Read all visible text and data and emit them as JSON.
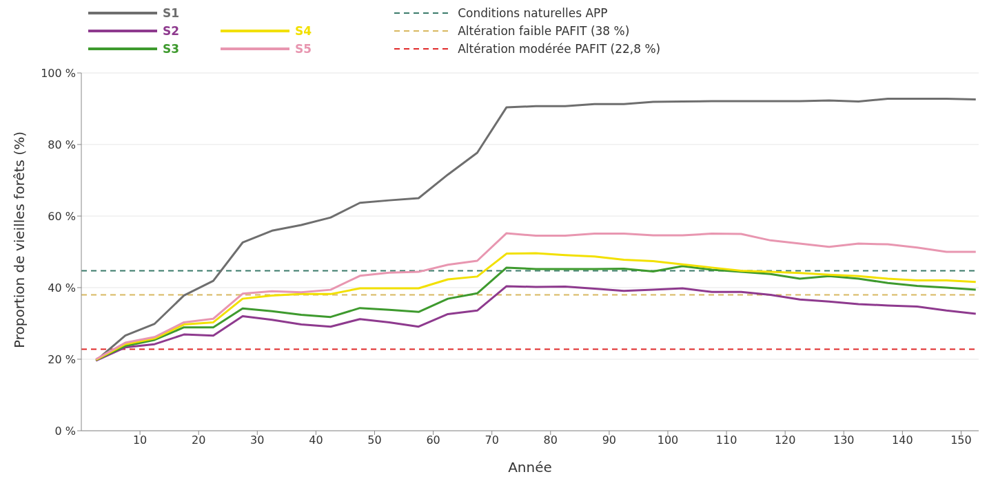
{
  "chart_data": {
    "type": "line",
    "xlabel": "Année",
    "ylabel": "Proportion de vieilles forêts (%)",
    "x": [
      2.5,
      7.5,
      12.5,
      17.5,
      22.5,
      27.5,
      32.5,
      37.5,
      42.5,
      47.5,
      52.5,
      57.5,
      62.5,
      67.5,
      72.5,
      77.5,
      82.5,
      87.5,
      92.5,
      97.5,
      102.5,
      107.5,
      112.5,
      117.5,
      122.5,
      127.5,
      132.5,
      137.5,
      142.5,
      147.5,
      152.5
    ],
    "series": [
      {
        "name": "S1",
        "color": "#6e6e6e",
        "values": [
          19.6,
          26.6,
          29.9,
          37.8,
          41.9,
          52.6,
          55.9,
          57.5,
          59.6,
          63.7,
          64.4,
          65,
          71.6,
          77.7,
          90.4,
          90.7,
          90.7,
          91.3,
          91.3,
          91.9,
          92,
          92.1,
          92.1,
          92.1,
          92.1,
          92.3,
          92,
          92.8,
          92.8,
          92.8,
          92.6
        ]
      },
      {
        "name": "S2",
        "color": "#8e3a8e",
        "values": [
          19.6,
          23.3,
          24.2,
          26.9,
          26.6,
          32,
          31,
          29.7,
          29.1,
          31.2,
          30.3,
          29.1,
          32.6,
          33.6,
          40.4,
          40.2,
          40.3,
          39.7,
          39.1,
          39.4,
          39.8,
          38.8,
          38.8,
          38,
          36.7,
          36.1,
          35.4,
          35,
          34.7,
          33.6,
          32.7
        ]
      },
      {
        "name": "S3",
        "color": "#3e9a2e",
        "values": [
          19.8,
          23.7,
          25.4,
          28.9,
          28.9,
          34.2,
          33.4,
          32.4,
          31.8,
          34.3,
          33.8,
          33.2,
          36.9,
          38.4,
          45.6,
          45.2,
          45.2,
          45.2,
          45.3,
          44.5,
          46,
          45,
          44.4,
          43.8,
          42.5,
          43.2,
          42.5,
          41.3,
          40.5,
          40,
          39.4
        ]
      },
      {
        "name": "S4",
        "color": "#f2e000",
        "values": [
          19.8,
          24.2,
          25.8,
          29.7,
          30.3,
          36.9,
          37.8,
          38.2,
          38.2,
          39.8,
          39.8,
          39.8,
          42.3,
          43.1,
          49.5,
          49.6,
          49.1,
          48.7,
          47.8,
          47.4,
          46.5,
          45.6,
          44.7,
          44.4,
          44.1,
          43.6,
          43.2,
          42.5,
          42,
          42,
          41.6
        ]
      },
      {
        "name": "S5",
        "color": "#e896b0",
        "values": [
          20,
          24.6,
          26.2,
          30.3,
          31.3,
          38.3,
          39,
          38.7,
          39.4,
          43.3,
          44.2,
          44.4,
          46.4,
          47.5,
          55.2,
          54.5,
          54.5,
          55.1,
          55.1,
          54.6,
          54.6,
          55.1,
          55,
          53.2,
          52.3,
          51.4,
          52.3,
          52.1,
          51.2,
          50,
          50
        ]
      }
    ],
    "ref_lines": [
      {
        "axis": "y",
        "value": 44.7,
        "label": "Conditions naturelles APP",
        "color": "#3a7a6a",
        "line_style": "dashed"
      },
      {
        "axis": "y",
        "value": 38,
        "label": "Altération faible PAFIT (38  %)",
        "color": "#d8b860",
        "line_style": "dashed"
      },
      {
        "axis": "y",
        "value": 22.8,
        "label": "Altération modérée PAFIT (22,8  %)",
        "color": "#e02a2a",
        "line_style": "dashed"
      }
    ],
    "xlim": [
      0,
      153
    ],
    "xticks": [
      10,
      20,
      30,
      40,
      50,
      60,
      70,
      80,
      90,
      100,
      110,
      120,
      130,
      140,
      150
    ],
    "ylim": [
      0,
      100
    ],
    "yticks": [
      {
        "value": 0,
        "label": "0 %"
      },
      {
        "value": 20,
        "label": "20 %"
      },
      {
        "value": 40,
        "label": "40 %"
      },
      {
        "value": 60,
        "label": "60 %"
      },
      {
        "value": 80,
        "label": "80 %"
      },
      {
        "value": 100,
        "label": "100 %"
      }
    ],
    "grid": "y",
    "legend": "top",
    "marker": "none",
    "line_style": "solid"
  }
}
